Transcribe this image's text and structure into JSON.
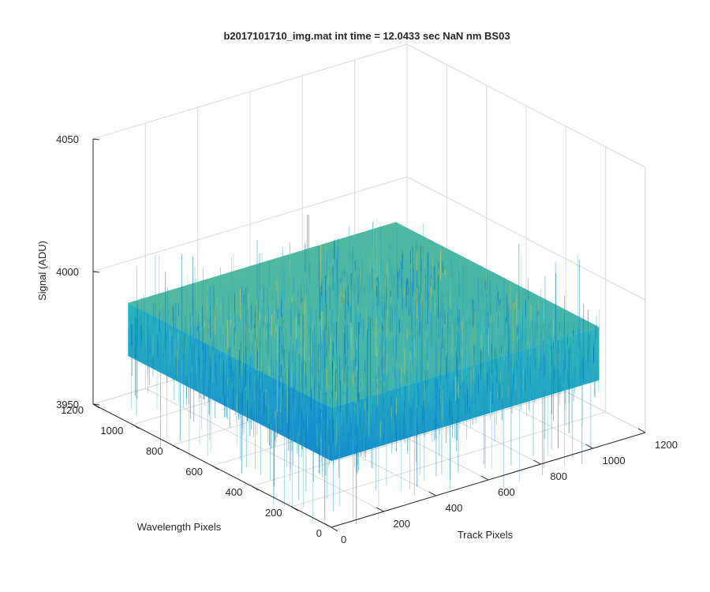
{
  "chart_data": {
    "type": "surface",
    "title": "b2017101710_img.mat int time = 12.0433 sec  NaN nm BS03",
    "xlabel": "Track Pixels",
    "ylabel": "Wavelength Pixels",
    "zlabel": "Signal (ADU)",
    "xlim": [
      0,
      1200
    ],
    "ylim": [
      0,
      1200
    ],
    "zlim": [
      3950,
      4050
    ],
    "x_ticks": [
      "0",
      "200",
      "400",
      "600",
      "800",
      "1000",
      "1200"
    ],
    "y_ticks": [
      "0",
      "200",
      "400",
      "600",
      "800",
      "1000",
      "1200"
    ],
    "z_ticks": [
      "3950",
      "4000",
      "4050"
    ],
    "grid": true,
    "colormap": "parula",
    "surface": {
      "x_range": [
        0,
        1024
      ],
      "y_range": [
        0,
        1024
      ],
      "signal_mean": 3985,
      "signal_min": 3955,
      "signal_max": 4020
    }
  },
  "colors": {
    "background": "#ffffff",
    "axis_line": "#262626",
    "grid_line": "#d9d9d9",
    "surface_low": "#0072bd",
    "surface_mid": "#1fb0c0",
    "surface_high": "#c8c85a"
  }
}
